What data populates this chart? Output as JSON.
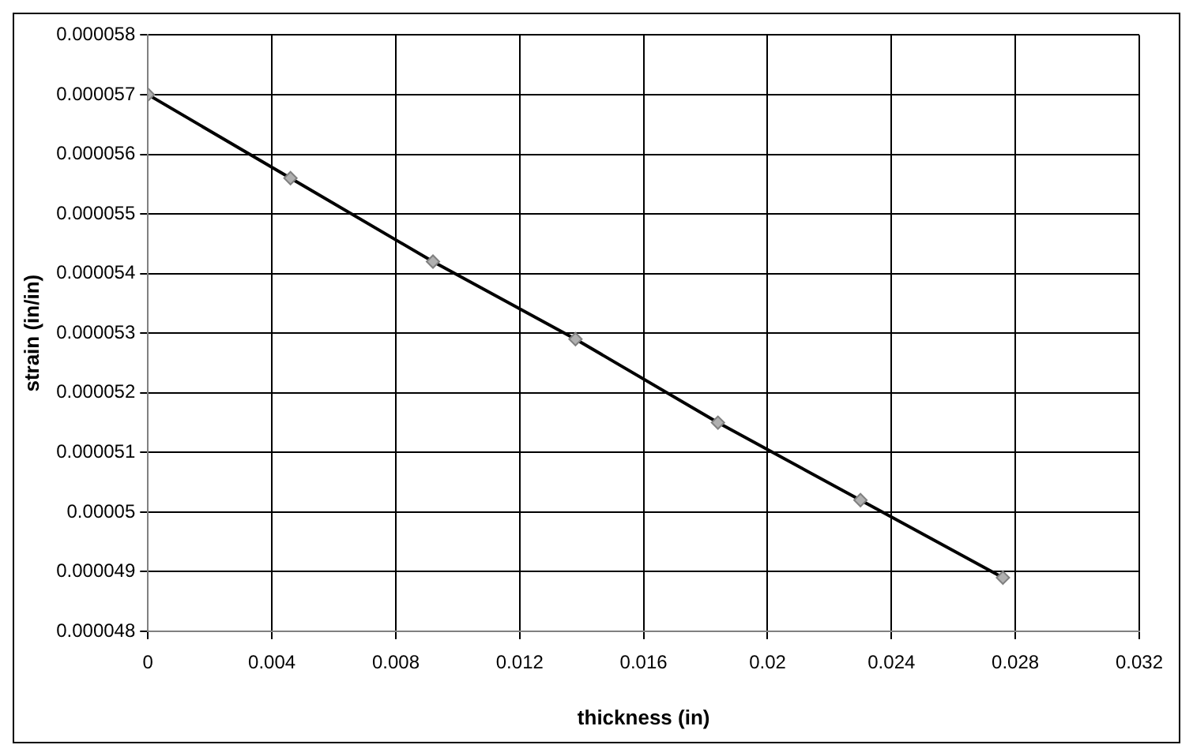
{
  "chart_data": {
    "type": "line",
    "xlabel": "thickness (in)",
    "ylabel": "strain (in/in)",
    "x": [
      0,
      0.0046,
      0.0092,
      0.0138,
      0.0184,
      0.023,
      0.0276
    ],
    "series": [
      {
        "color": "#000000",
        "values": [
          5.7e-05,
          5.56e-05,
          5.42e-05,
          5.29e-05,
          5.15e-05,
          5.02e-05,
          4.89e-05
        ]
      }
    ],
    "marker": "diamond",
    "grid": true,
    "legend": false,
    "xlim": [
      0,
      0.032
    ],
    "xticks": [
      0,
      0.004,
      0.008,
      0.012,
      0.016,
      0.02,
      0.024,
      0.028,
      0.032
    ],
    "ylim": [
      4.8e-05,
      5.8e-05
    ],
    "yticks": [
      {
        "value": 4.8e-05,
        "label": "0.000048"
      },
      {
        "value": 4.9e-05,
        "label": "0.000049"
      },
      {
        "value": 5e-05,
        "label": "0.00005"
      },
      {
        "value": 5.1e-05,
        "label": "0.000051"
      },
      {
        "value": 5.2e-05,
        "label": "0.000052"
      },
      {
        "value": 5.3e-05,
        "label": "0.000053"
      },
      {
        "value": 5.4e-05,
        "label": "0.000054"
      },
      {
        "value": 5.5e-05,
        "label": "0.000055"
      },
      {
        "value": 5.6e-05,
        "label": "0.000056"
      },
      {
        "value": 5.7e-05,
        "label": "0.000057"
      },
      {
        "value": 5.8e-05,
        "label": "0.000058"
      }
    ]
  }
}
